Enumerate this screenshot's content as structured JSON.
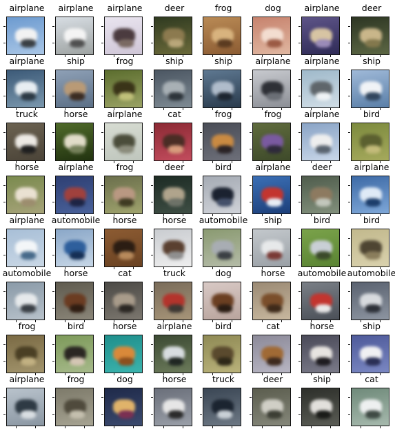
{
  "rows": [
    [
      {
        "label": "airplane",
        "thumb": "truck-on-ground",
        "bg": [
          "#6d9bd0",
          "#a9c6e6"
        ],
        "blob": [
          "#f2f2f2",
          "#3a3f44"
        ]
      },
      {
        "label": "airplane",
        "thumb": "white-jet",
        "bg": [
          "#d7dde3",
          "#9ea3a2"
        ],
        "blob": [
          "#f4f4f4",
          "#505050"
        ]
      },
      {
        "label": "airplane",
        "thumb": "dark-jet-on-light",
        "bg": [
          "#e9e4ef",
          "#cfc6d7"
        ],
        "blob": [
          "#4b3b3f",
          "#7a6a62"
        ]
      },
      {
        "label": "deer",
        "thumb": "deer-in-brush",
        "bg": [
          "#2f3a20",
          "#6b6a3a"
        ],
        "blob": [
          "#8c7a4f",
          "#b9a77a"
        ]
      },
      {
        "label": "frog",
        "thumb": "frog-closeup",
        "bg": [
          "#b98a55",
          "#8c5c33"
        ],
        "blob": [
          "#d8b37e",
          "#5b3b20"
        ]
      },
      {
        "label": "dog",
        "thumb": "fluffy-kitten",
        "bg": [
          "#c7836e",
          "#e0b7a1"
        ],
        "blob": [
          "#f3ddd0",
          "#9b5a44"
        ]
      },
      {
        "label": "airplane",
        "thumb": "jet-at-dusk",
        "bg": [
          "#5d5487",
          "#2f2b57"
        ],
        "blob": [
          "#d7c4a3",
          "#9a8bb8"
        ]
      },
      {
        "label": "deer",
        "thumb": "deer-in-forest",
        "bg": [
          "#2d3623",
          "#5c6744"
        ],
        "blob": [
          "#c9b68a",
          "#83784d"
        ]
      }
    ],
    [
      {
        "label": "airplane",
        "thumb": "seaplane",
        "bg": [
          "#3c5a78",
          "#7a97ad"
        ],
        "blob": [
          "#e8eef2",
          "#2c3944"
        ]
      },
      {
        "label": "ship",
        "thumb": "small-boat",
        "bg": [
          "#8ea0b6",
          "#5b6f86"
        ],
        "blob": [
          "#b99a76",
          "#3b2c22"
        ]
      },
      {
        "label": "frog",
        "thumb": "frog-on-leaves",
        "bg": [
          "#5b6d2e",
          "#9aa264"
        ],
        "blob": [
          "#3a3418",
          "#c0c07a"
        ]
      },
      {
        "label": "ship",
        "thumb": "cat-like-blur",
        "bg": [
          "#4b5662",
          "#7e8a93"
        ],
        "blob": [
          "#a8b0b5",
          "#2d343a"
        ]
      },
      {
        "label": "ship",
        "thumb": "ship-hull",
        "bg": [
          "#5e7891",
          "#2a3b4d"
        ],
        "blob": [
          "#b0bccb",
          "#1d2530"
        ]
      },
      {
        "label": "airplane",
        "thumb": "fighter-jet",
        "bg": [
          "#c7c9ce",
          "#8c8f96"
        ],
        "blob": [
          "#2e3036",
          "#6b6f76"
        ]
      },
      {
        "label": "airplane",
        "thumb": "plane-in-sky",
        "bg": [
          "#9fb9ca",
          "#d0dde6"
        ],
        "blob": [
          "#5f666b",
          "#eff3f5"
        ]
      },
      {
        "label": "ship",
        "thumb": "cruise-ship",
        "bg": [
          "#9fb9d8",
          "#5a7fa8"
        ],
        "blob": [
          "#f0f3f6",
          "#31465e"
        ]
      }
    ],
    [
      {
        "label": "truck",
        "thumb": "white-truck",
        "bg": [
          "#6b6251",
          "#4b4438"
        ],
        "blob": [
          "#ece9e4",
          "#1f1f1f"
        ]
      },
      {
        "label": "horse",
        "thumb": "horse-blur",
        "bg": [
          "#4f6a2a",
          "#223310"
        ],
        "blob": [
          "#e1dcc9",
          "#75805a"
        ]
      },
      {
        "label": "airplane",
        "thumb": "prop-plane",
        "bg": [
          "#d7dcd2",
          "#bfc6bd"
        ],
        "blob": [
          "#4b4d3b",
          "#8b8c7c"
        ]
      },
      {
        "label": "cat",
        "thumb": "cat-on-red",
        "bg": [
          "#8c2a34",
          "#c24c5d"
        ],
        "blob": [
          "#4a2d25",
          "#d79b7c"
        ]
      },
      {
        "label": "frog",
        "thumb": "frog-on-stone",
        "bg": [
          "#4a4d57",
          "#6d6f79"
        ],
        "blob": [
          "#c98a42",
          "#2a2326"
        ]
      },
      {
        "label": "frog",
        "thumb": "dark-frog",
        "bg": [
          "#5f6b3d",
          "#3e4a2a"
        ],
        "blob": [
          "#7a5aa0",
          "#2e2a3a"
        ]
      },
      {
        "label": "airplane",
        "thumb": "airliner",
        "bg": [
          "#8aa4c6",
          "#c8d6e8"
        ],
        "blob": [
          "#eeeeee",
          "#5a6470"
        ]
      },
      {
        "label": "bird",
        "thumb": "bird-in-grass",
        "bg": [
          "#7c8a3e",
          "#a5a95c"
        ],
        "blob": [
          "#5b6030",
          "#c3bb7a"
        ]
      }
    ],
    [
      {
        "label": "horse",
        "thumb": "white-horse",
        "bg": [
          "#7a8a4e",
          "#a6a379"
        ],
        "blob": [
          "#eae1d2",
          "#9c8d6e"
        ]
      },
      {
        "label": "airplane",
        "thumb": "jet-low",
        "bg": [
          "#2e3f73",
          "#49619a"
        ],
        "blob": [
          "#a0413d",
          "#1d2444"
        ]
      },
      {
        "label": "frog",
        "thumb": "bird-on-branch",
        "bg": [
          "#6b6f4c",
          "#9fa36d"
        ],
        "blob": [
          "#b99882",
          "#3e3a22"
        ]
      },
      {
        "label": "deer",
        "thumb": "deer-dark",
        "bg": [
          "#1d2b24",
          "#3e4e44"
        ],
        "blob": [
          "#b0a48c",
          "#6d7268"
        ]
      },
      {
        "label": "bird",
        "thumb": "dark-bird",
        "bg": [
          "#a5abb4",
          "#cfd2d8"
        ],
        "blob": [
          "#1b2230",
          "#44506a"
        ]
      },
      {
        "label": "airplane",
        "thumb": "red-plane",
        "bg": [
          "#3b6fb5",
          "#1c3f7a"
        ],
        "blob": [
          "#c3352f",
          "#e8eef5"
        ]
      },
      {
        "label": "deer",
        "thumb": "deer-in-field",
        "bg": [
          "#4f5c4c",
          "#82907c"
        ],
        "blob": [
          "#8d7a60",
          "#c2c7bc"
        ]
      },
      {
        "label": "airplane",
        "thumb": "blue-jet",
        "bg": [
          "#3d6aa6",
          "#7ea7d8"
        ],
        "blob": [
          "#dfeaf6",
          "#1c3d6b"
        ]
      }
    ],
    [
      {
        "label": "airplane",
        "thumb": "airliner-runway",
        "bg": [
          "#a8bfd7",
          "#c9d7e5"
        ],
        "blob": [
          "#f3f6f8",
          "#476a8a"
        ]
      },
      {
        "label": "automobile",
        "thumb": "blue-car",
        "bg": [
          "#8aa7c8",
          "#c6d6e6"
        ],
        "blob": [
          "#2e5f9c",
          "#152f55"
        ]
      },
      {
        "label": "horse",
        "thumb": "horse-rider",
        "bg": [
          "#8c5b32",
          "#6a4222"
        ],
        "blob": [
          "#2b1d13",
          "#b78a5c"
        ]
      },
      {
        "label": "horse",
        "thumb": "horses-snow",
        "bg": [
          "#c9ccd0",
          "#eeeeee"
        ],
        "blob": [
          "#5a4030",
          "#8f8f8f"
        ]
      },
      {
        "label": "automobile",
        "thumb": "silver-car",
        "bg": [
          "#8a9a71",
          "#b4bba7"
        ],
        "blob": [
          "#a8adb3",
          "#3b3f44"
        ]
      },
      {
        "label": "ship",
        "thumb": "boat-spray",
        "bg": [
          "#c3c8cc",
          "#9aa0a6"
        ],
        "blob": [
          "#e7e9ea",
          "#7a3a35"
        ]
      },
      {
        "label": "bird",
        "thumb": "bird-on-grass",
        "bg": [
          "#7aa24a",
          "#5a8433"
        ],
        "blob": [
          "#c9cfd5",
          "#3b4a2a"
        ]
      },
      {
        "label": "bird",
        "thumb": "perched-bird",
        "bg": [
          "#c2b98d",
          "#d9d1ad"
        ],
        "blob": [
          "#4e4532",
          "#8a7d5c"
        ]
      }
    ],
    [
      {
        "label": "automobile",
        "thumb": "white-sedan",
        "bg": [
          "#8a9aa8",
          "#b7c1ca"
        ],
        "blob": [
          "#e6e9eb",
          "#3a3f45"
        ]
      },
      {
        "label": "horse",
        "thumb": "horse-head",
        "bg": [
          "#5f5b4f",
          "#8a8578"
        ],
        "blob": [
          "#6b3c22",
          "#2f1d12"
        ]
      },
      {
        "label": "cat",
        "thumb": "tabby-cat",
        "bg": [
          "#4c4a46",
          "#7b766e"
        ],
        "blob": [
          "#a89b8a",
          "#2b2723"
        ]
      },
      {
        "label": "truck",
        "thumb": "red-truck",
        "bg": [
          "#7a6c5a",
          "#a69478"
        ],
        "blob": [
          "#b3342c",
          "#3d3833"
        ]
      },
      {
        "label": "dog",
        "thumb": "dog-pair",
        "bg": [
          "#d8c9c5",
          "#b9a49d"
        ],
        "blob": [
          "#6b3f22",
          "#2a1c13"
        ]
      },
      {
        "label": "horse",
        "thumb": "horse-brown",
        "bg": [
          "#9b8a74",
          "#c7b79e"
        ],
        "blob": [
          "#7a4e2b",
          "#3e2a1a"
        ]
      },
      {
        "label": "automobile",
        "thumb": "red-boat-car",
        "bg": [
          "#7a7f86",
          "#4b5058"
        ],
        "blob": [
          "#c3352f",
          "#e8e8e8"
        ]
      },
      {
        "label": "automobile",
        "thumb": "parked-cars",
        "bg": [
          "#5a6270",
          "#8c94a0"
        ],
        "blob": [
          "#d7dade",
          "#2c3038"
        ]
      }
    ],
    [
      {
        "label": "frog",
        "thumb": "frog-ground",
        "bg": [
          "#7a6a44",
          "#a2946c"
        ],
        "blob": [
          "#4a3f24",
          "#c2b182"
        ]
      },
      {
        "label": "bird",
        "thumb": "ostrich",
        "bg": [
          "#7d9a5a",
          "#a6b98a"
        ],
        "blob": [
          "#2a2622",
          "#d4c6b4"
        ]
      },
      {
        "label": "horse",
        "thumb": "horse-teal",
        "bg": [
          "#1f8f8c",
          "#3bb3ad"
        ],
        "blob": [
          "#d9893a",
          "#8c4f1e"
        ]
      },
      {
        "label": "airplane",
        "thumb": "plane-ground",
        "bg": [
          "#3c4a33",
          "#6b7a5a"
        ],
        "blob": [
          "#d8dde0",
          "#1f2622"
        ]
      },
      {
        "label": "bird",
        "thumb": "small-bird",
        "bg": [
          "#8f8a55",
          "#b9b27a"
        ],
        "blob": [
          "#5a4a2e",
          "#2e2818"
        ]
      },
      {
        "label": "cat",
        "thumb": "cat-brown",
        "bg": [
          "#8c8a99",
          "#b7b5c2"
        ],
        "blob": [
          "#a06a35",
          "#3e2a1e"
        ]
      },
      {
        "label": "horse",
        "thumb": "horse-dark",
        "bg": [
          "#4a4a58",
          "#7a7a88"
        ],
        "blob": [
          "#e7e4e0",
          "#1d1b1f"
        ]
      },
      {
        "label": "ship",
        "thumb": "white-yacht",
        "bg": [
          "#4e5a9a",
          "#7a87c2"
        ],
        "blob": [
          "#f0f0f2",
          "#2a2f55"
        ]
      }
    ],
    [
      {
        "label": "airplane",
        "thumb": "boat-crew",
        "bg": [
          "#b9c3cc",
          "#8a96a2"
        ],
        "blob": [
          "#2e3a44",
          "#d9dee2"
        ]
      },
      {
        "label": "frog",
        "thumb": "frog-gray",
        "bg": [
          "#7d7a6a",
          "#a6a392"
        ],
        "blob": [
          "#4f4a3c",
          "#c4bfae"
        ]
      },
      {
        "label": "dog",
        "thumb": "dog-ball",
        "bg": [
          "#1f2a4a",
          "#3b4a6e"
        ],
        "blob": [
          "#e0b36a",
          "#7a2f52"
        ]
      },
      {
        "label": "horse",
        "thumb": "horse-people",
        "bg": [
          "#6a6f7a",
          "#9a9fa8"
        ],
        "blob": [
          "#e6e6e6",
          "#2b2b2b"
        ]
      },
      {
        "label": "truck",
        "thumb": "box-truck",
        "bg": [
          "#3a4654",
          "#6d7884"
        ],
        "blob": [
          "#1b2430",
          "#c9d0d6"
        ]
      },
      {
        "label": "deer",
        "thumb": "deer-fog",
        "bg": [
          "#5b5d4e",
          "#85877a"
        ],
        "blob": [
          "#d0cfc6",
          "#3c3e34"
        ]
      },
      {
        "label": "ship",
        "thumb": "boat-dark",
        "bg": [
          "#2d2f2a",
          "#5a5c55"
        ],
        "blob": [
          "#e2e0dc",
          "#1a1b18"
        ]
      },
      {
        "label": "cat",
        "thumb": "white-cat",
        "bg": [
          "#6f8a7a",
          "#a6b9ad"
        ],
        "blob": [
          "#eef0f0",
          "#3f4a44"
        ]
      }
    ]
  ]
}
